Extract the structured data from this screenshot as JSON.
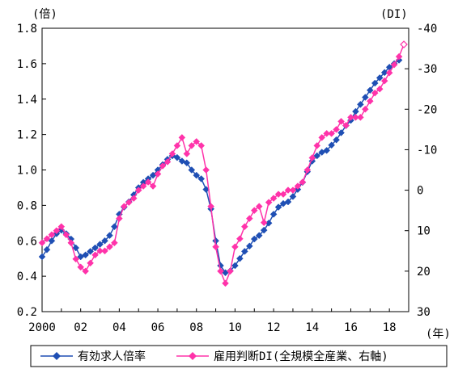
{
  "chart_data": {
    "type": "line",
    "y_unit_label": "(倍)",
    "y2_unit_label": "(DI)",
    "x_unit_label": "(年)",
    "x_axis": {
      "range": [
        2000,
        2019
      ],
      "tick_values": [
        2000,
        2002,
        2004,
        2006,
        2008,
        2010,
        2012,
        2014,
        2016,
        2018
      ],
      "tick_labels": [
        "2000",
        "02",
        "04",
        "06",
        "08",
        "10",
        "12",
        "14",
        "16",
        "18"
      ]
    },
    "y_axis": {
      "range": [
        0.2,
        1.8
      ],
      "ticks": [
        0.2,
        0.4,
        0.6,
        0.8,
        1.0,
        1.2,
        1.4,
        1.6,
        1.8
      ],
      "tick_labels": [
        "0.2",
        "0.4",
        "0.6",
        "0.8",
        "1.0",
        "1.2",
        "1.4",
        "1.6",
        "1.8"
      ]
    },
    "y2_axis": {
      "range": [
        30,
        -40
      ],
      "inverted": true,
      "ticks": [
        30,
        20,
        10,
        0,
        -10,
        -20,
        -30,
        -40
      ],
      "tick_labels": [
        "30",
        "20",
        "10",
        "0",
        "-10",
        "-20",
        "-30",
        "-40"
      ]
    },
    "grid": false,
    "legend_position": "bottom",
    "series": [
      {
        "name": "有効求人倍率",
        "axis": "left",
        "color": "#1F4FB4",
        "marker": "diamond",
        "points": [
          [
            2000.0,
            0.51
          ],
          [
            2000.25,
            0.55
          ],
          [
            2000.5,
            0.6
          ],
          [
            2000.75,
            0.64
          ],
          [
            2001.0,
            0.66
          ],
          [
            2001.25,
            0.64
          ],
          [
            2001.5,
            0.61
          ],
          [
            2001.75,
            0.56
          ],
          [
            2002.0,
            0.51
          ],
          [
            2002.25,
            0.52
          ],
          [
            2002.5,
            0.54
          ],
          [
            2002.75,
            0.56
          ],
          [
            2003.0,
            0.58
          ],
          [
            2003.25,
            0.6
          ],
          [
            2003.5,
            0.63
          ],
          [
            2003.75,
            0.68
          ],
          [
            2004.0,
            0.75
          ],
          [
            2004.25,
            0.79
          ],
          [
            2004.5,
            0.82
          ],
          [
            2004.75,
            0.86
          ],
          [
            2005.0,
            0.9
          ],
          [
            2005.25,
            0.93
          ],
          [
            2005.5,
            0.95
          ],
          [
            2005.75,
            0.97
          ],
          [
            2006.0,
            1.0
          ],
          [
            2006.25,
            1.03
          ],
          [
            2006.5,
            1.06
          ],
          [
            2006.75,
            1.08
          ],
          [
            2007.0,
            1.07
          ],
          [
            2007.25,
            1.05
          ],
          [
            2007.5,
            1.04
          ],
          [
            2007.75,
            1.0
          ],
          [
            2008.0,
            0.97
          ],
          [
            2008.25,
            0.95
          ],
          [
            2008.5,
            0.89
          ],
          [
            2008.75,
            0.78
          ],
          [
            2009.0,
            0.6
          ],
          [
            2009.25,
            0.46
          ],
          [
            2009.5,
            0.42
          ],
          [
            2009.75,
            0.43
          ],
          [
            2010.0,
            0.46
          ],
          [
            2010.25,
            0.5
          ],
          [
            2010.5,
            0.54
          ],
          [
            2010.75,
            0.57
          ],
          [
            2011.0,
            0.61
          ],
          [
            2011.25,
            0.63
          ],
          [
            2011.5,
            0.66
          ],
          [
            2011.75,
            0.7
          ],
          [
            2012.0,
            0.75
          ],
          [
            2012.25,
            0.79
          ],
          [
            2012.5,
            0.81
          ],
          [
            2012.75,
            0.82
          ],
          [
            2013.0,
            0.85
          ],
          [
            2013.25,
            0.89
          ],
          [
            2013.5,
            0.93
          ],
          [
            2013.75,
            0.99
          ],
          [
            2014.0,
            1.05
          ],
          [
            2014.25,
            1.08
          ],
          [
            2014.5,
            1.1
          ],
          [
            2014.75,
            1.11
          ],
          [
            2015.0,
            1.14
          ],
          [
            2015.25,
            1.17
          ],
          [
            2015.5,
            1.21
          ],
          [
            2015.75,
            1.25
          ],
          [
            2016.0,
            1.28
          ],
          [
            2016.25,
            1.33
          ],
          [
            2016.5,
            1.37
          ],
          [
            2016.75,
            1.41
          ],
          [
            2017.0,
            1.45
          ],
          [
            2017.25,
            1.49
          ],
          [
            2017.5,
            1.52
          ],
          [
            2017.75,
            1.55
          ],
          [
            2018.0,
            1.58
          ],
          [
            2018.25,
            1.6
          ],
          [
            2018.5,
            1.62
          ]
        ]
      },
      {
        "name": "雇用判断DI(全規模全産業、右軸)",
        "axis": "right",
        "color": "#FF33AA",
        "marker": "diamond",
        "points": [
          [
            2000.0,
            13
          ],
          [
            2000.25,
            12
          ],
          [
            2000.5,
            11
          ],
          [
            2000.75,
            10
          ],
          [
            2001.0,
            9
          ],
          [
            2001.25,
            11
          ],
          [
            2001.5,
            13
          ],
          [
            2001.75,
            17
          ],
          [
            2002.0,
            19
          ],
          [
            2002.25,
            20
          ],
          [
            2002.5,
            18
          ],
          [
            2002.75,
            16
          ],
          [
            2003.0,
            15
          ],
          [
            2003.25,
            15
          ],
          [
            2003.5,
            14
          ],
          [
            2003.75,
            13
          ],
          [
            2004.0,
            7
          ],
          [
            2004.25,
            4
          ],
          [
            2004.5,
            3
          ],
          [
            2004.75,
            2
          ],
          [
            2005.0,
            0
          ],
          [
            2005.25,
            -1
          ],
          [
            2005.5,
            -2
          ],
          [
            2005.75,
            -1
          ],
          [
            2006.0,
            -4
          ],
          [
            2006.25,
            -6
          ],
          [
            2006.5,
            -7
          ],
          [
            2006.75,
            -9
          ],
          [
            2007.0,
            -11
          ],
          [
            2007.25,
            -13
          ],
          [
            2007.5,
            -9
          ],
          [
            2007.75,
            -11
          ],
          [
            2008.0,
            -12
          ],
          [
            2008.25,
            -11
          ],
          [
            2008.5,
            -5
          ],
          [
            2008.75,
            4
          ],
          [
            2009.0,
            14
          ],
          [
            2009.25,
            20
          ],
          [
            2009.5,
            23
          ],
          [
            2009.75,
            20
          ],
          [
            2010.0,
            14
          ],
          [
            2010.25,
            12
          ],
          [
            2010.5,
            9
          ],
          [
            2010.75,
            7
          ],
          [
            2011.0,
            5
          ],
          [
            2011.25,
            4
          ],
          [
            2011.5,
            8
          ],
          [
            2011.75,
            3
          ],
          [
            2012.0,
            2
          ],
          [
            2012.25,
            1
          ],
          [
            2012.5,
            1
          ],
          [
            2012.75,
            0
          ],
          [
            2013.0,
            0
          ],
          [
            2013.25,
            -1
          ],
          [
            2013.5,
            -2
          ],
          [
            2013.75,
            -5
          ],
          [
            2014.0,
            -8
          ],
          [
            2014.25,
            -11
          ],
          [
            2014.5,
            -13
          ],
          [
            2014.75,
            -14
          ],
          [
            2015.0,
            -14
          ],
          [
            2015.25,
            -15
          ],
          [
            2015.5,
            -17
          ],
          [
            2015.75,
            -16
          ],
          [
            2016.0,
            -18
          ],
          [
            2016.25,
            -18
          ],
          [
            2016.5,
            -18
          ],
          [
            2016.75,
            -20
          ],
          [
            2017.0,
            -22
          ],
          [
            2017.25,
            -24
          ],
          [
            2017.5,
            -25
          ],
          [
            2017.75,
            -27
          ],
          [
            2018.0,
            -29
          ],
          [
            2018.25,
            -31
          ],
          [
            2018.5,
            -33
          ],
          [
            2018.75,
            -36
          ]
        ]
      }
    ]
  }
}
